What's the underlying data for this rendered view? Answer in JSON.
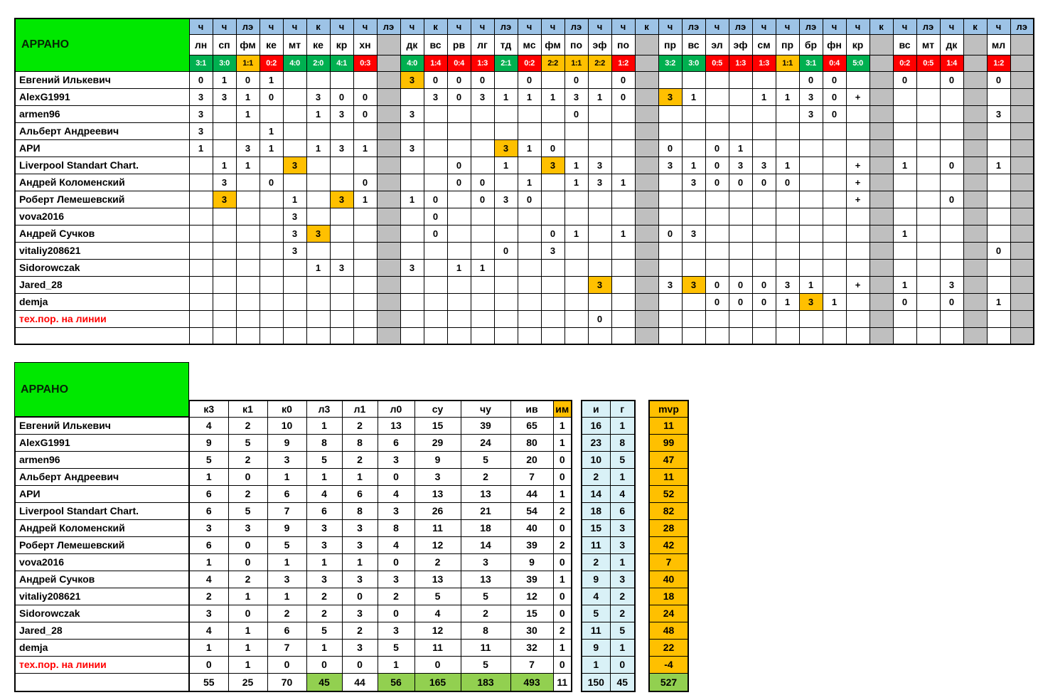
{
  "team_name": "АРРАНО",
  "colors": {
    "green_block": "#00e800",
    "header_blue": "#9dc3e6",
    "win_green": "#00b050",
    "loss_red": "#ff0000",
    "draw_orange": "#ffc000",
    "separator_gray": "#bfbfbf",
    "highlight_orange": "#ffc000",
    "ig_cyan": "#d9f1f7",
    "mvp_gold": "#ffc000",
    "total_green": "#92d050",
    "alert_red_text": "#ff0000"
  },
  "top_table": {
    "columns": [
      {
        "type": "ч",
        "opp": "лн",
        "score": "3:1",
        "result": "win"
      },
      {
        "type": "ч",
        "opp": "сп",
        "score": "3:0",
        "result": "win"
      },
      {
        "type": "лэ",
        "opp": "фм",
        "score": "1:1",
        "result": "draw"
      },
      {
        "type": "ч",
        "opp": "ке",
        "score": "0:2",
        "result": "loss"
      },
      {
        "type": "ч",
        "opp": "мт",
        "score": "4:0",
        "result": "win"
      },
      {
        "type": "к",
        "opp": "ке",
        "score": "2:0",
        "result": "win"
      },
      {
        "type": "ч",
        "opp": "кр",
        "score": "4:1",
        "result": "win"
      },
      {
        "type": "ч",
        "opp": "хн",
        "score": "0:3",
        "result": "loss"
      },
      {
        "type": "лэ",
        "sep": true
      },
      {
        "type": "ч",
        "opp": "дк",
        "score": "4:0",
        "result": "win"
      },
      {
        "type": "к",
        "opp": "вс",
        "score": "1:4",
        "result": "loss"
      },
      {
        "type": "ч",
        "opp": "рв",
        "score": "0:4",
        "result": "loss"
      },
      {
        "type": "ч",
        "opp": "лг",
        "score": "1:3",
        "result": "loss"
      },
      {
        "type": "лэ",
        "opp": "тд",
        "score": "2:1",
        "result": "win"
      },
      {
        "type": "ч",
        "opp": "мс",
        "score": "0:2",
        "result": "loss"
      },
      {
        "type": "ч",
        "opp": "фм",
        "score": "2:2",
        "result": "draw"
      },
      {
        "type": "лэ",
        "opp": "по",
        "score": "1:1",
        "result": "draw"
      },
      {
        "type": "ч",
        "opp": "эф",
        "score": "2:2",
        "result": "draw"
      },
      {
        "type": "ч",
        "opp": "по",
        "score": "1:2",
        "result": "loss"
      },
      {
        "type": "к",
        "sep": true
      },
      {
        "type": "ч",
        "opp": "пр",
        "score": "3:2",
        "result": "win"
      },
      {
        "type": "лэ",
        "opp": "вс",
        "score": "3:0",
        "result": "win"
      },
      {
        "type": "ч",
        "opp": "эл",
        "score": "0:5",
        "result": "loss"
      },
      {
        "type": "лэ",
        "opp": "эф",
        "score": "1:3",
        "result": "loss"
      },
      {
        "type": "ч",
        "opp": "см",
        "score": "1:3",
        "result": "loss"
      },
      {
        "type": "ч",
        "opp": "пр",
        "score": "1:1",
        "result": "draw"
      },
      {
        "type": "лэ",
        "opp": "бр",
        "score": "3:1",
        "result": "win"
      },
      {
        "type": "ч",
        "opp": "фн",
        "score": "0:4",
        "result": "loss"
      },
      {
        "type": "ч",
        "opp": "кр",
        "score": "5:0",
        "result": "win"
      },
      {
        "type": "к",
        "sep": true
      },
      {
        "type": "ч",
        "opp": "вс",
        "score": "0:2",
        "result": "loss"
      },
      {
        "type": "лэ",
        "opp": "мт",
        "score": "0:5",
        "result": "loss"
      },
      {
        "type": "ч",
        "opp": "дк",
        "score": "1:4",
        "result": "loss"
      },
      {
        "type": "к",
        "sep": true
      },
      {
        "type": "ч",
        "opp": "мл",
        "score": "1:2",
        "result": "loss"
      },
      {
        "type": "лэ",
        "sep": true
      }
    ],
    "players": [
      {
        "name": "Евгений Илькевич",
        "cells": {
          "0": "0",
          "1": "1",
          "2": "0",
          "3": "1",
          "9": "3",
          "10": "0",
          "11": "0",
          "12": "0",
          "14": "0",
          "16": "0",
          "18": "0",
          "26": "0",
          "27": "0",
          "30": "0",
          "32": "0",
          "34": "0"
        },
        "hl": [
          9
        ]
      },
      {
        "name": "AlexG1991",
        "cells": {
          "0": "3",
          "1": "3",
          "2": "1",
          "3": "0",
          "5": "3",
          "6": "0",
          "7": "0",
          "10": "3",
          "11": "0",
          "12": "3",
          "13": "1",
          "14": "1",
          "15": "1",
          "16": "3",
          "17": "1",
          "18": "0",
          "20": "3",
          "21": "1",
          "24": "1",
          "25": "1",
          "26": "3",
          "27": "0",
          "28": "+"
        },
        "hl": [
          20
        ]
      },
      {
        "name": "armen96",
        "cells": {
          "0": "3",
          "2": "1",
          "5": "1",
          "6": "3",
          "7": "0",
          "9": "3",
          "16": "0",
          "26": "3",
          "27": "0",
          "34": "3"
        },
        "hl": []
      },
      {
        "name": "Альберт Андреевич",
        "cells": {
          "0": "3",
          "3": "1"
        },
        "hl": []
      },
      {
        "name": "АРИ",
        "cells": {
          "0": "1",
          "2": "3",
          "3": "1",
          "5": "1",
          "6": "3",
          "7": "1",
          "9": "3",
          "13": "3",
          "14": "1",
          "15": "0",
          "20": "0",
          "22": "0",
          "23": "1"
        },
        "hl": [
          13
        ]
      },
      {
        "name": "Liverpool Standart Chart.",
        "cells": {
          "1": "1",
          "2": "1",
          "4": "3",
          "11": "0",
          "13": "1",
          "15": "3",
          "16": "1",
          "17": "3",
          "20": "3",
          "21": "1",
          "22": "0",
          "23": "3",
          "24": "3",
          "25": "1",
          "28": "+",
          "30": "1",
          "32": "0",
          "34": "1"
        },
        "hl": [
          4,
          15
        ]
      },
      {
        "name": "Андрей Коломенский",
        "cells": {
          "1": "3",
          "3": "0",
          "7": "0",
          "11": "0",
          "12": "0",
          "14": "1",
          "16": "1",
          "17": "3",
          "18": "1",
          "21": "3",
          "22": "0",
          "23": "0",
          "24": "0",
          "25": "0",
          "28": "+"
        },
        "hl": []
      },
      {
        "name": "Роберт Лемешевский",
        "cells": {
          "1": "3",
          "4": "1",
          "6": "3",
          "7": "1",
          "9": "1",
          "10": "0",
          "12": "0",
          "13": "3",
          "14": "0",
          "28": "+",
          "32": "0"
        },
        "hl": [
          1,
          6
        ]
      },
      {
        "name": "vova2016",
        "cells": {
          "4": "3",
          "10": "0"
        },
        "hl": []
      },
      {
        "name": "Андрей Сучков",
        "cells": {
          "4": "3",
          "5": "3",
          "10": "0",
          "15": "0",
          "16": "1",
          "18": "1",
          "20": "0",
          "21": "3",
          "30": "1"
        },
        "hl": [
          5
        ]
      },
      {
        "name": "vitaliy208621",
        "cells": {
          "4": "3",
          "13": "0",
          "15": "3",
          "34": "0"
        },
        "hl": []
      },
      {
        "name": "Sidorowczak",
        "cells": {
          "5": "1",
          "6": "3",
          "9": "3",
          "11": "1",
          "12": "1"
        },
        "hl": []
      },
      {
        "name": "Jared_28",
        "cells": {
          "17": "3",
          "20": "3",
          "21": "3",
          "22": "0",
          "23": "0",
          "24": "0",
          "25": "3",
          "26": "1",
          "28": "+",
          "30": "1",
          "32": "3"
        },
        "hl": [
          17,
          21
        ]
      },
      {
        "name": "demja",
        "cells": {
          "22": "0",
          "23": "0",
          "24": "0",
          "25": "1",
          "26": "3",
          "27": "1",
          "30": "0",
          "32": "0",
          "34": "1"
        },
        "hl": [
          26
        ]
      },
      {
        "name": "тех.пор. на линии",
        "red": true,
        "cells": {
          "17": "0"
        },
        "hl": []
      },
      {
        "name": "",
        "cells": {},
        "hl": []
      }
    ]
  },
  "bottom_table": {
    "main_headers": [
      "к3",
      "к1",
      "к0",
      "л3",
      "л1",
      "л0",
      "су",
      "чу",
      "ив",
      "им"
    ],
    "ig_headers": [
      "и",
      "г"
    ],
    "mvp_header": "mvp",
    "rows": [
      {
        "name": "Евгений Илькевич",
        "stats": [
          4,
          2,
          10,
          1,
          2,
          13,
          15,
          39,
          65,
          1
        ],
        "ig": [
          16,
          1
        ],
        "mvp": 11
      },
      {
        "name": "AlexG1991",
        "stats": [
          9,
          5,
          9,
          8,
          8,
          6,
          29,
          24,
          80,
          1
        ],
        "ig": [
          23,
          8
        ],
        "mvp": 99
      },
      {
        "name": "armen96",
        "stats": [
          5,
          2,
          3,
          5,
          2,
          3,
          9,
          5,
          20,
          0
        ],
        "ig": [
          10,
          5
        ],
        "mvp": 47
      },
      {
        "name": "Альберт Андреевич",
        "stats": [
          1,
          0,
          1,
          1,
          1,
          0,
          3,
          2,
          7,
          0
        ],
        "ig": [
          2,
          1
        ],
        "mvp": 11
      },
      {
        "name": "АРИ",
        "stats": [
          6,
          2,
          6,
          4,
          6,
          4,
          13,
          13,
          44,
          1
        ],
        "ig": [
          14,
          4
        ],
        "mvp": 52
      },
      {
        "name": "Liverpool Standart Chart.",
        "stats": [
          6,
          5,
          7,
          6,
          8,
          3,
          26,
          21,
          54,
          2
        ],
        "ig": [
          18,
          6
        ],
        "mvp": 82
      },
      {
        "name": "Андрей Коломенский",
        "stats": [
          3,
          3,
          9,
          3,
          3,
          8,
          11,
          18,
          40,
          0
        ],
        "ig": [
          15,
          3
        ],
        "mvp": 28
      },
      {
        "name": "Роберт Лемешевский",
        "stats": [
          6,
          0,
          5,
          3,
          3,
          4,
          12,
          14,
          39,
          2
        ],
        "ig": [
          11,
          3
        ],
        "mvp": 42
      },
      {
        "name": "vova2016",
        "stats": [
          1,
          0,
          1,
          1,
          1,
          0,
          2,
          3,
          9,
          0
        ],
        "ig": [
          2,
          1
        ],
        "mvp": 7
      },
      {
        "name": "Андрей Сучков",
        "stats": [
          4,
          2,
          3,
          3,
          3,
          3,
          13,
          13,
          39,
          1
        ],
        "ig": [
          9,
          3
        ],
        "mvp": 40
      },
      {
        "name": "vitaliy208621",
        "stats": [
          2,
          1,
          1,
          2,
          0,
          2,
          5,
          5,
          12,
          0
        ],
        "ig": [
          4,
          2
        ],
        "mvp": 18
      },
      {
        "name": "Sidorowczak",
        "stats": [
          3,
          0,
          2,
          2,
          3,
          0,
          4,
          2,
          15,
          0
        ],
        "ig": [
          5,
          2
        ],
        "mvp": 24
      },
      {
        "name": "Jared_28",
        "stats": [
          4,
          1,
          6,
          5,
          2,
          3,
          12,
          8,
          30,
          2
        ],
        "ig": [
          11,
          5
        ],
        "mvp": 48
      },
      {
        "name": "demja",
        "stats": [
          1,
          1,
          7,
          1,
          3,
          5,
          11,
          11,
          32,
          1
        ],
        "ig": [
          9,
          1
        ],
        "mvp": 22
      },
      {
        "name": "тех.пор. на линии",
        "red": true,
        "stats": [
          0,
          1,
          0,
          0,
          0,
          1,
          0,
          5,
          7,
          0
        ],
        "ig": [
          1,
          0
        ],
        "mvp": -4
      }
    ],
    "totals": {
      "stats": [
        55,
        25,
        70,
        45,
        44,
        56,
        165,
        183,
        493,
        11
      ],
      "green_cols": [
        3,
        5,
        6,
        7,
        8
      ],
      "ig": [
        150,
        45
      ],
      "mvp": 527
    }
  }
}
